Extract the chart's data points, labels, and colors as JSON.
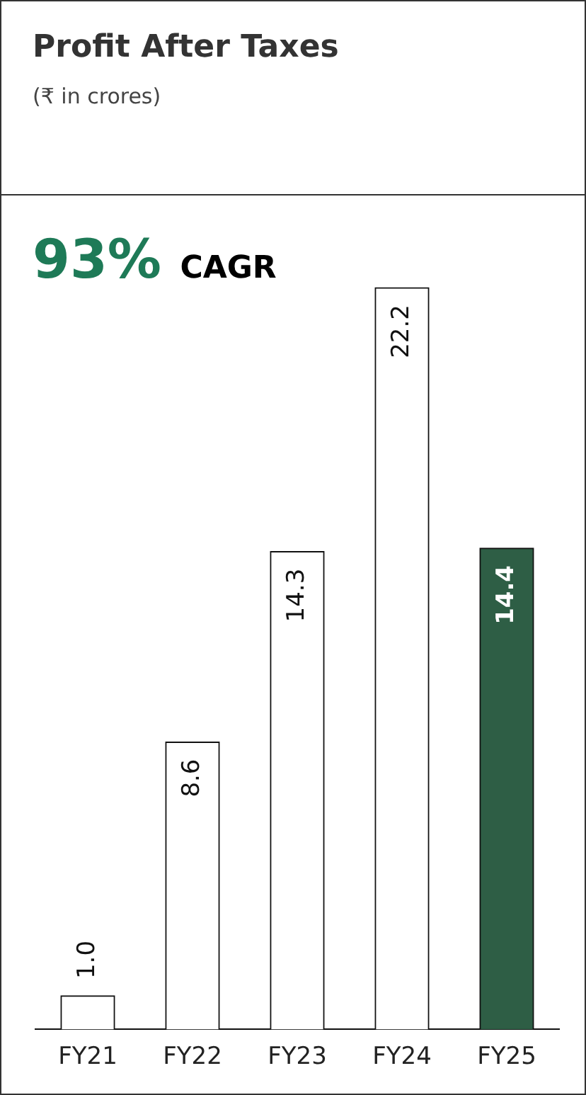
{
  "chart_data": {
    "type": "bar",
    "title": "Profit After Taxes",
    "subtitle": "(₹ in crores)",
    "annotations": [
      "93% CAGR"
    ],
    "categories": [
      "FY21",
      "FY22",
      "FY23",
      "FY24",
      "FY25"
    ],
    "values": [
      1.0,
      8.6,
      14.3,
      22.2,
      14.4
    ],
    "colors": [
      "#ffffff",
      "#ffffff",
      "#ffffff",
      "#ffffff",
      "#2e5e45"
    ],
    "value_labels": [
      "1.0",
      "8.6",
      "14.3",
      "22.2",
      "14.4"
    ],
    "relative": false,
    "grid": false,
    "legend": false
  }
}
